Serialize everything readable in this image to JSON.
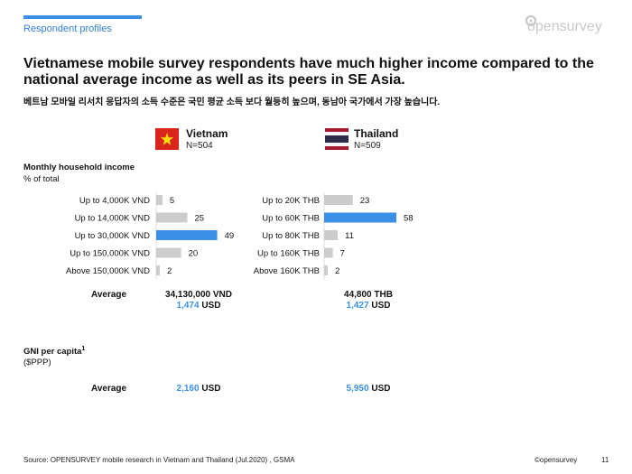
{
  "header": {
    "section_label": "Respondent profiles",
    "logo_text": "opensurvey",
    "title": "Vietnamese mobile survey respondents have much higher income compared to the national average income as well as its peers in SE Asia.",
    "subtitle": "베트남 모바일 리서치 응답자의 소득 수준은 국민 평균 소득 보다 월등히 높으며, 동남아 국가에서 가장 높습니다."
  },
  "countries": [
    {
      "name": "Vietnam",
      "n": "N=504"
    },
    {
      "name": "Thailand",
      "n": "N=509"
    }
  ],
  "income_section": {
    "label": "Monthly household income",
    "unit": "% of total"
  },
  "chart_data": [
    {
      "type": "bar",
      "orientation": "horizontal",
      "categories": [
        "Up to 4,000K VND",
        "Up to 14,000K VND",
        "Up to 30,000K VND",
        "Up to 150,000K VND",
        "Above 150,000K VND"
      ],
      "values": [
        5,
        25,
        49,
        20,
        2
      ],
      "highlight_index": 2,
      "xlim": [
        0,
        58
      ],
      "colors": {
        "default": "#cccccc",
        "highlight": "#3b8fe6"
      }
    },
    {
      "type": "bar",
      "orientation": "horizontal",
      "categories": [
        "Up to 20K THB",
        "Up to 60K THB",
        "Up to 80K THB",
        "Up to 160K THB",
        "Above 160K THB"
      ],
      "values": [
        23,
        58,
        11,
        7,
        2
      ],
      "highlight_index": 1,
      "xlim": [
        0,
        58
      ],
      "colors": {
        "default": "#cccccc",
        "highlight": "#3b8fe6"
      }
    }
  ],
  "average": {
    "label": "Average",
    "vietnam": {
      "local": "34,130,000 VND",
      "usd_value": "1,474",
      "usd_unit": "USD"
    },
    "thailand": {
      "local": "44,800 THB",
      "usd_value": "1,427",
      "usd_unit": "USD"
    }
  },
  "gni": {
    "label": "GNI per capita",
    "sup": "1",
    "unit": "($PPP)",
    "avg_label": "Average",
    "vietnam": {
      "usd_value": "2,160",
      "usd_unit": "USD"
    },
    "thailand": {
      "usd_value": "5,950",
      "usd_unit": "USD"
    }
  },
  "footer": {
    "source": "Source: OPENSURVEY mobile research in Vietnam and Thailand (Jul.2020) , GSMA",
    "brand": "©opensurvey",
    "page": "11"
  },
  "colors": {
    "accent": "#3b8fe6",
    "bar_gray": "#cccccc"
  }
}
